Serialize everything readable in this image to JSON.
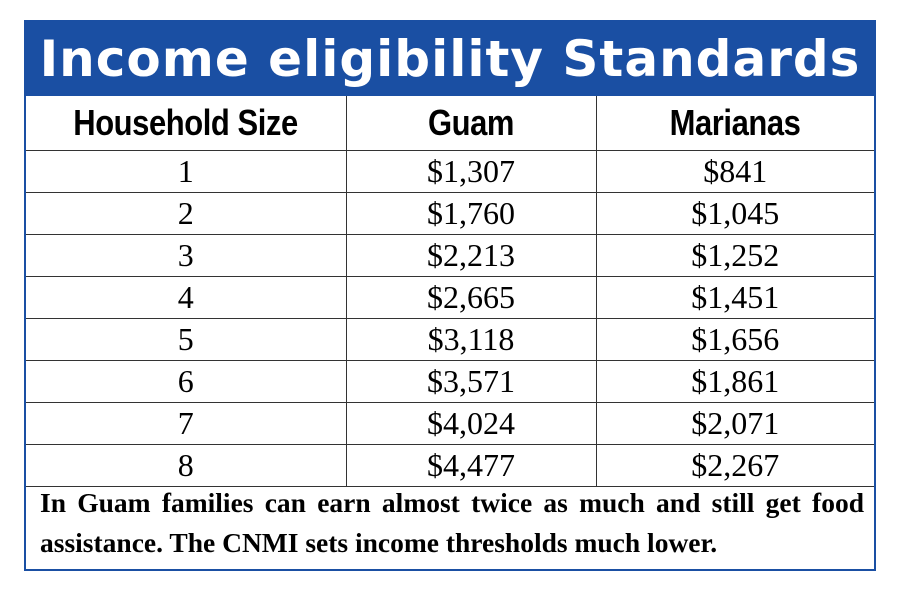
{
  "title": "Income eligibility Standards",
  "table": {
    "headers": [
      "Household Size",
      "Guam",
      "Marianas"
    ],
    "rows": [
      [
        "1",
        "$1,307",
        "$841"
      ],
      [
        "2",
        "$1,760",
        "$1,045"
      ],
      [
        "3",
        "$2,213",
        "$1,252"
      ],
      [
        "4",
        "$2,665",
        "$1,451"
      ],
      [
        "5",
        "$3,118",
        "$1,656"
      ],
      [
        "6",
        "$3,571",
        "$1,861"
      ],
      [
        "7",
        "$4,024",
        "$2,071"
      ],
      [
        "8",
        "$4,477",
        "$2,267"
      ]
    ]
  },
  "note": "In Guam families can earn almost twice as much and still get food assistance. The CNMI sets income thresholds much lower.",
  "colors": {
    "title_bar": "#1a4fa3",
    "border": "#1a4fa3"
  }
}
